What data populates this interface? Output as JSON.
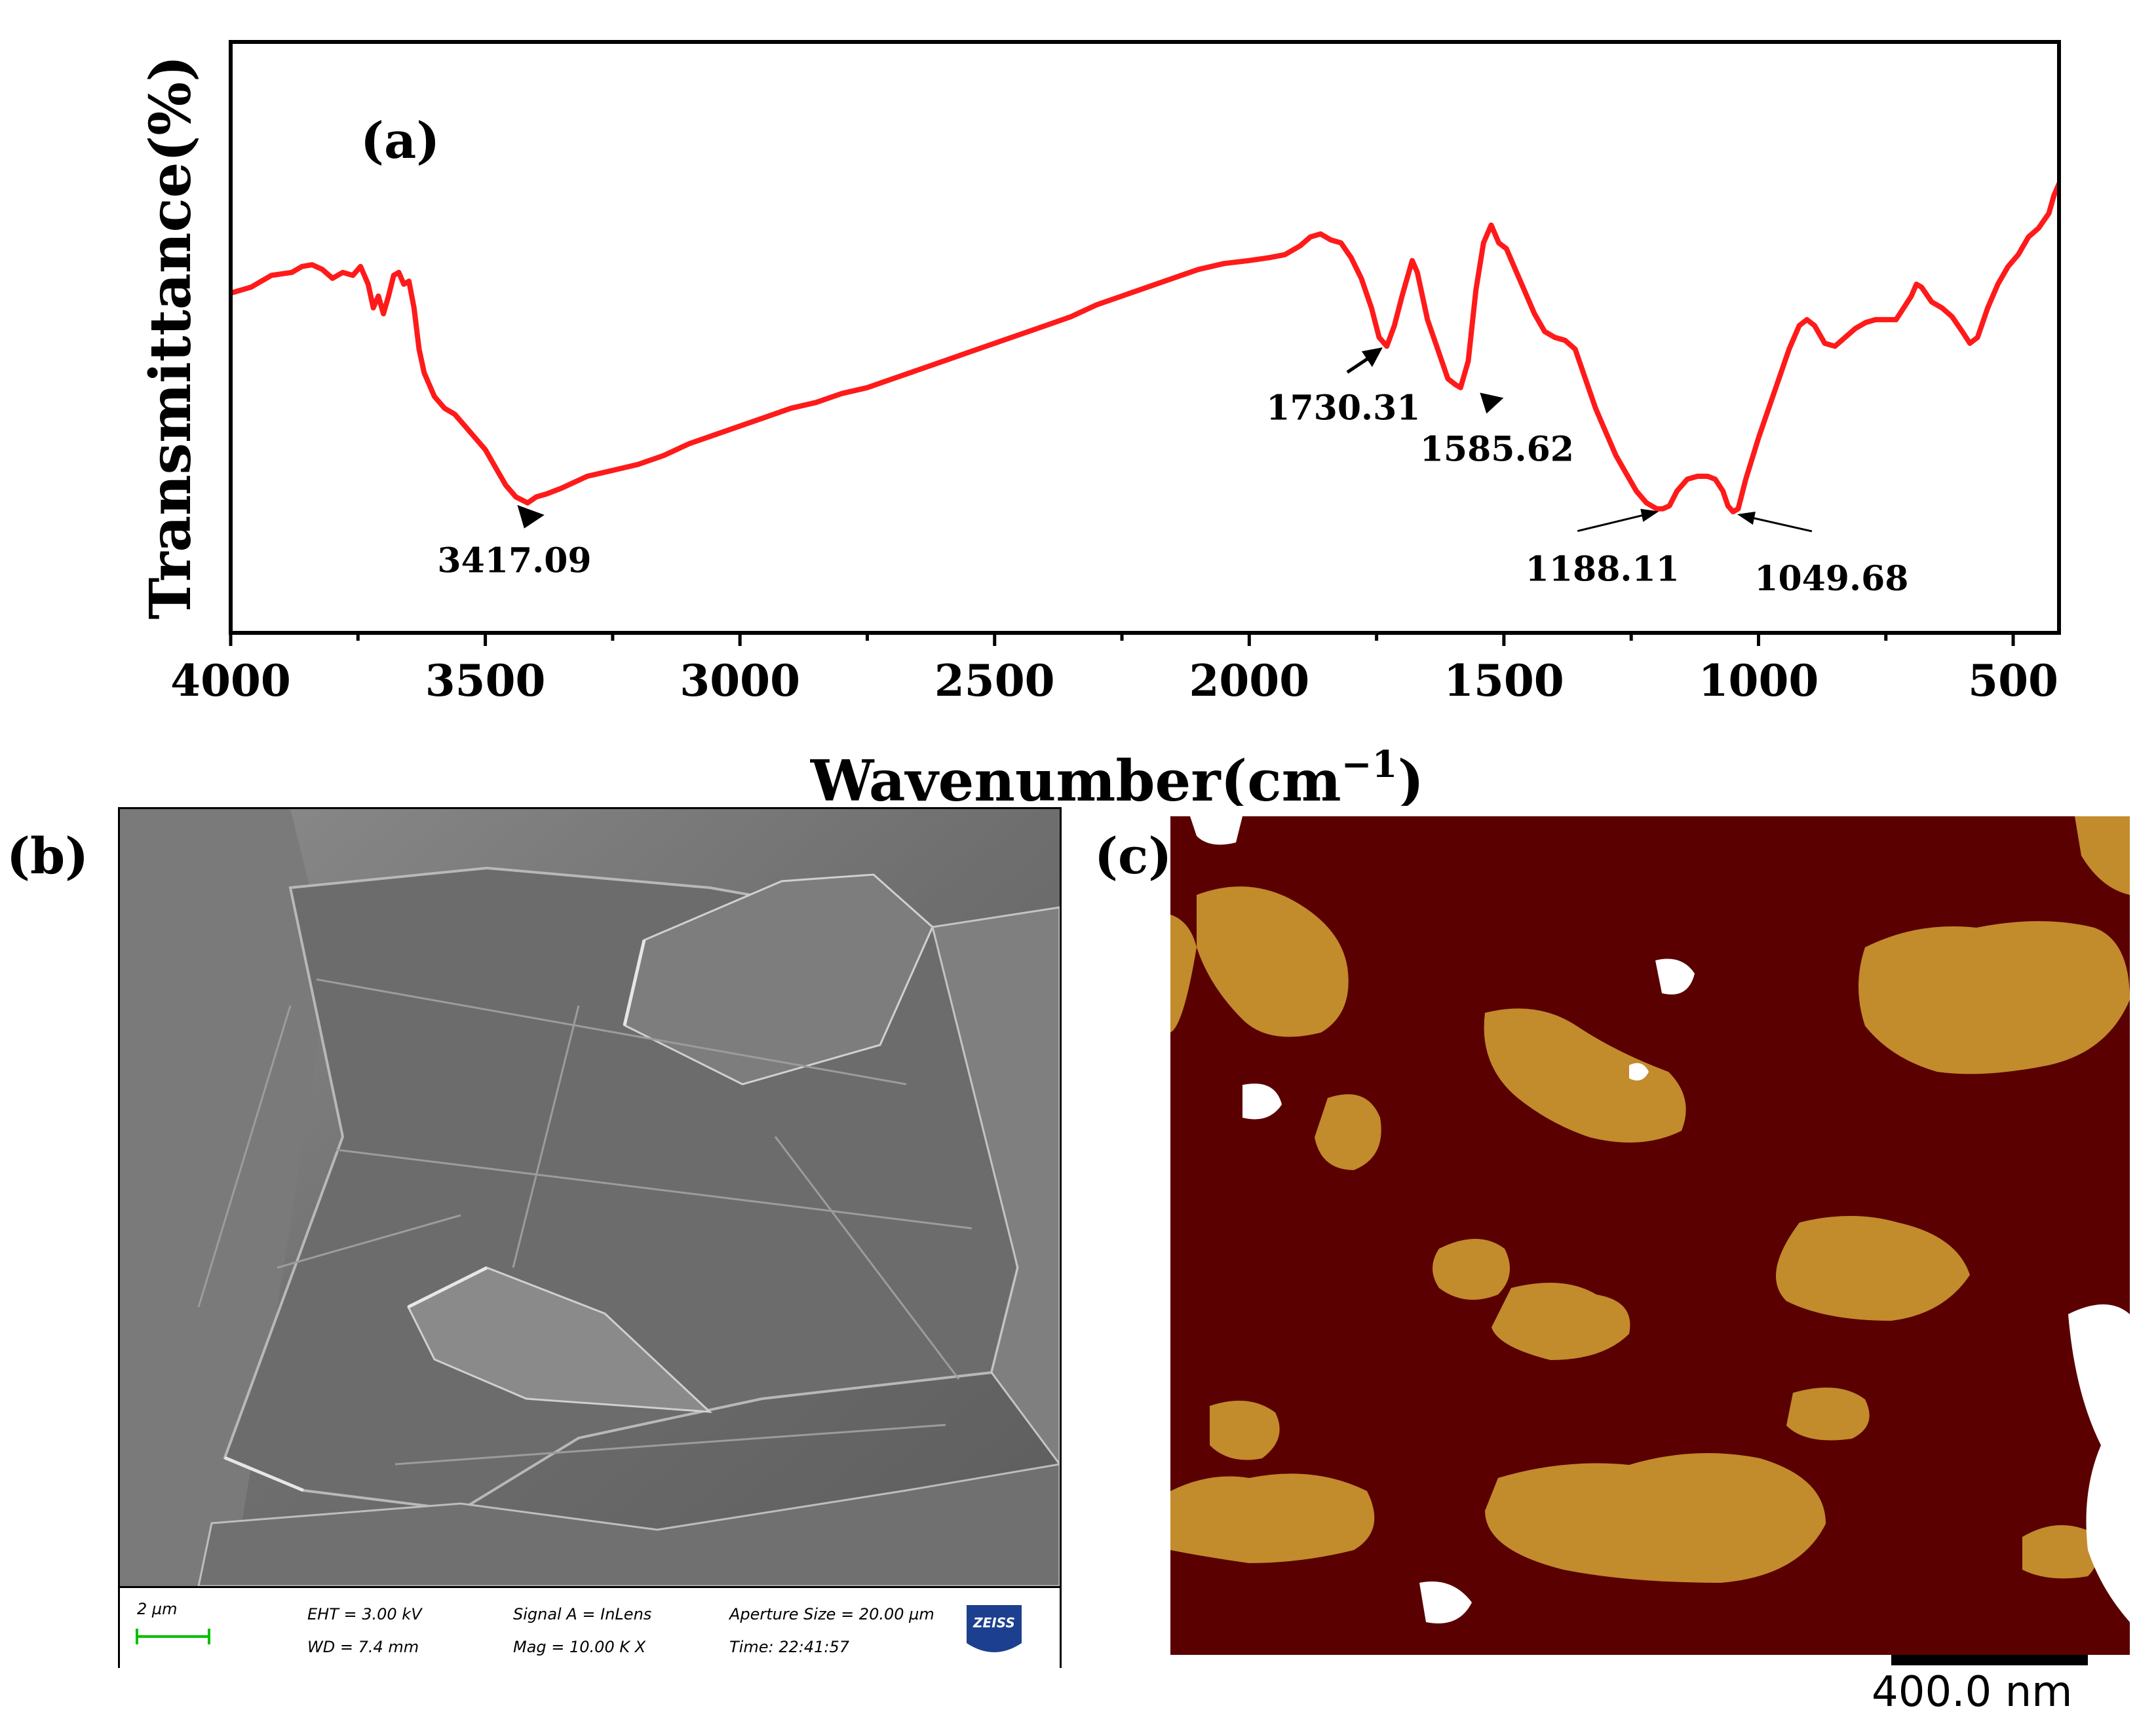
{
  "panels": {
    "a": {
      "letter": "(a)"
    },
    "b": {
      "letter": "(b)"
    },
    "c": {
      "letter": "(c)"
    }
  },
  "chart_data": {
    "type": "line",
    "ylabel": "Transmittance(%)",
    "xlabel_main": "Wavenumber(cm",
    "xlabel_sup": "−1",
    "xlabel_close": ")",
    "xlim": [
      4000,
      410
    ],
    "x_reversed": true,
    "x_ticks": [
      4000,
      3500,
      3000,
      2500,
      2000,
      1500,
      1000,
      500
    ],
    "x_tick_labels": [
      "4000",
      "3500",
      "3000",
      "2500",
      "2000",
      "1500",
      "1000",
      "500"
    ],
    "y_ticks": false,
    "grid": false,
    "line_color": "#ff1a1a",
    "series": [
      {
        "points": [
          [
            4000,
            57.5
          ],
          [
            3960,
            58.5
          ],
          [
            3920,
            60.5
          ],
          [
            3880,
            61
          ],
          [
            3860,
            62
          ],
          [
            3840,
            62.3
          ],
          [
            3820,
            61.5
          ],
          [
            3800,
            60
          ],
          [
            3780,
            61
          ],
          [
            3760,
            60.5
          ],
          [
            3745,
            62
          ],
          [
            3730,
            59
          ],
          [
            3720,
            55
          ],
          [
            3710,
            57
          ],
          [
            3700,
            54
          ],
          [
            3690,
            57
          ],
          [
            3680,
            60.5
          ],
          [
            3670,
            61
          ],
          [
            3660,
            59
          ],
          [
            3650,
            59.5
          ],
          [
            3640,
            55
          ],
          [
            3630,
            48
          ],
          [
            3620,
            44
          ],
          [
            3610,
            42
          ],
          [
            3600,
            40
          ],
          [
            3580,
            38
          ],
          [
            3560,
            37
          ],
          [
            3540,
            35
          ],
          [
            3520,
            33
          ],
          [
            3500,
            31
          ],
          [
            3480,
            28
          ],
          [
            3460,
            25
          ],
          [
            3440,
            23
          ],
          [
            3417,
            22
          ],
          [
            3400,
            23
          ],
          [
            3380,
            23.5
          ],
          [
            3350,
            24.5
          ],
          [
            3300,
            26.5
          ],
          [
            3250,
            27.5
          ],
          [
            3200,
            28.5
          ],
          [
            3150,
            30
          ],
          [
            3100,
            32
          ],
          [
            3050,
            33.5
          ],
          [
            3000,
            35
          ],
          [
            2950,
            36.5
          ],
          [
            2900,
            38
          ],
          [
            2850,
            39
          ],
          [
            2800,
            40.5
          ],
          [
            2750,
            41.5
          ],
          [
            2700,
            43
          ],
          [
            2650,
            44.5
          ],
          [
            2600,
            46
          ],
          [
            2550,
            47.5
          ],
          [
            2500,
            49
          ],
          [
            2450,
            50.5
          ],
          [
            2400,
            52
          ],
          [
            2350,
            53.5
          ],
          [
            2300,
            55.5
          ],
          [
            2250,
            57
          ],
          [
            2200,
            58.5
          ],
          [
            2150,
            60
          ],
          [
            2100,
            61.5
          ],
          [
            2050,
            62.5
          ],
          [
            2000,
            63
          ],
          [
            1960,
            63.5
          ],
          [
            1930,
            64
          ],
          [
            1900,
            65.5
          ],
          [
            1880,
            67
          ],
          [
            1860,
            67.5
          ],
          [
            1840,
            66.5
          ],
          [
            1820,
            66
          ],
          [
            1800,
            63.5
          ],
          [
            1780,
            60
          ],
          [
            1760,
            55
          ],
          [
            1745,
            50
          ],
          [
            1730,
            48.5
          ],
          [
            1715,
            52
          ],
          [
            1700,
            57
          ],
          [
            1690,
            60
          ],
          [
            1680,
            63
          ],
          [
            1670,
            61
          ],
          [
            1650,
            53
          ],
          [
            1630,
            48
          ],
          [
            1610,
            43
          ],
          [
            1595,
            42
          ],
          [
            1585,
            41.5
          ],
          [
            1570,
            46
          ],
          [
            1555,
            58
          ],
          [
            1540,
            66
          ],
          [
            1525,
            69
          ],
          [
            1510,
            66
          ],
          [
            1495,
            65
          ],
          [
            1480,
            62
          ],
          [
            1460,
            58
          ],
          [
            1440,
            54
          ],
          [
            1420,
            51
          ],
          [
            1400,
            50
          ],
          [
            1380,
            49.5
          ],
          [
            1360,
            48
          ],
          [
            1340,
            43
          ],
          [
            1320,
            38
          ],
          [
            1300,
            34
          ],
          [
            1280,
            30
          ],
          [
            1260,
            27
          ],
          [
            1240,
            24
          ],
          [
            1220,
            22
          ],
          [
            1200,
            21
          ],
          [
            1188,
            21
          ],
          [
            1175,
            21.5
          ],
          [
            1160,
            24
          ],
          [
            1140,
            26
          ],
          [
            1120,
            26.5
          ],
          [
            1100,
            26.5
          ],
          [
            1085,
            26
          ],
          [
            1070,
            24
          ],
          [
            1060,
            21.5
          ],
          [
            1050,
            20.5
          ],
          [
            1040,
            21
          ],
          [
            1025,
            26
          ],
          [
            1000,
            33
          ],
          [
            980,
            38
          ],
          [
            960,
            43
          ],
          [
            940,
            48
          ],
          [
            920,
            52
          ],
          [
            905,
            53
          ],
          [
            890,
            52
          ],
          [
            870,
            49
          ],
          [
            850,
            48.5
          ],
          [
            830,
            50
          ],
          [
            810,
            51.5
          ],
          [
            790,
            52.5
          ],
          [
            770,
            53
          ],
          [
            750,
            53
          ],
          [
            730,
            53
          ],
          [
            715,
            55
          ],
          [
            700,
            57
          ],
          [
            690,
            59
          ],
          [
            680,
            58.5
          ],
          [
            660,
            56
          ],
          [
            640,
            55
          ],
          [
            620,
            53.5
          ],
          [
            600,
            51
          ],
          [
            585,
            49
          ],
          [
            570,
            50
          ],
          [
            550,
            55
          ],
          [
            530,
            59
          ],
          [
            510,
            62
          ],
          [
            490,
            64
          ],
          [
            470,
            67
          ],
          [
            450,
            68.5
          ],
          [
            430,
            71
          ],
          [
            420,
            74
          ],
          [
            410,
            76
          ]
        ]
      }
    ],
    "annotations": [
      {
        "label": "3417.09",
        "x": 3417.09,
        "arrow": "triangle-down"
      },
      {
        "label": "1730.31",
        "x": 1730.31,
        "arrow": "arrow-from-lower-left"
      },
      {
        "label": "1585.62",
        "x": 1585.62,
        "arrow": "triangle-from-right"
      },
      {
        "label": "1188.11",
        "x": 1188.11,
        "arrow": "thin-arrow-from-left"
      },
      {
        "label": "1049.68",
        "x": 1049.68,
        "arrow": "thin-arrow-from-right"
      }
    ]
  },
  "sem": {
    "scale_label": "2 µm",
    "eht": "EHT =  3.00 kV",
    "wd": "WD =  7.4 mm",
    "signal": "Signal A = InLens",
    "mag": "Mag =    10.00 K X",
    "aperture": "Aperture Size = 20.00 µm",
    "time": "Time: 22:41:57",
    "logo_text": "ZEISS",
    "scale_color": "#00c000",
    "logo_color": "#1c3f8f"
  },
  "afm": {
    "scale_label": "400.0 nm",
    "background_color": "#5a0000",
    "flake_color": "#c8922e",
    "highlight_color": "#ffffff"
  }
}
